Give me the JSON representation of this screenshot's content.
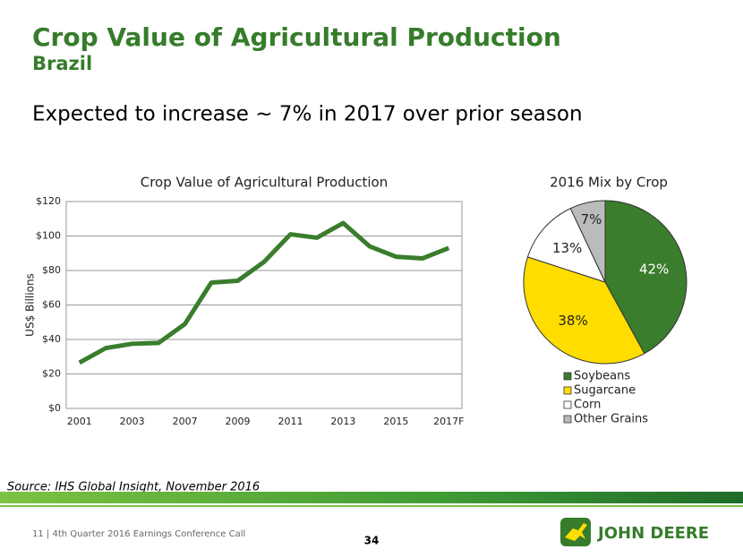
{
  "header": {
    "title": "Crop Value of Agricultural Production",
    "subtitle": "Brazil",
    "headline": "Expected to increase ~ 7% in 2017 over prior season"
  },
  "chart_data": [
    {
      "type": "line",
      "title": "Crop Value of Agricultural Production",
      "y_label": "US$ Billions",
      "categories": [
        "2001",
        null,
        "2003",
        null,
        "2007",
        null,
        "2009",
        null,
        "2011",
        null,
        "2013",
        null,
        "2015",
        null,
        "2017F"
      ],
      "series": [
        {
          "name": "Crop Value",
          "color": "#3a7d2c",
          "values": [
            26.5,
            35,
            37.5,
            38,
            49,
            73,
            74,
            85,
            101,
            99,
            107.5,
            94,
            88,
            87,
            93
          ]
        }
      ],
      "ylim": [
        0,
        120
      ],
      "yticks": [
        {
          "value": 0,
          "label": "$0"
        },
        {
          "value": 20,
          "label": "$20"
        },
        {
          "value": 40,
          "label": "$40"
        },
        {
          "value": 60,
          "label": "$60"
        },
        {
          "value": 80,
          "label": "$80"
        },
        {
          "value": 100,
          "label": "$100"
        },
        {
          "value": 120,
          "label": "$120"
        }
      ],
      "grid": true
    },
    {
      "type": "pie",
      "title": "2016 Mix by Crop",
      "categories": [
        "Soybeans",
        "Sugarcane",
        "Corn",
        "Other Grains"
      ],
      "values": [
        42,
        38,
        13,
        7
      ],
      "value_labels": [
        "42%",
        "38%",
        "13%",
        "7%"
      ],
      "colors": [
        "#3a7d2c",
        "#ffdd00",
        "#ffffff",
        "#bbbbbb"
      ],
      "legend": "bottom"
    }
  ],
  "source": "Source: IHS Global Insight, November 2016",
  "footer": {
    "text": "11  |  4th Quarter 2016 Earnings Conference Call",
    "page": "34",
    "logo": "JOHN DEERE"
  }
}
